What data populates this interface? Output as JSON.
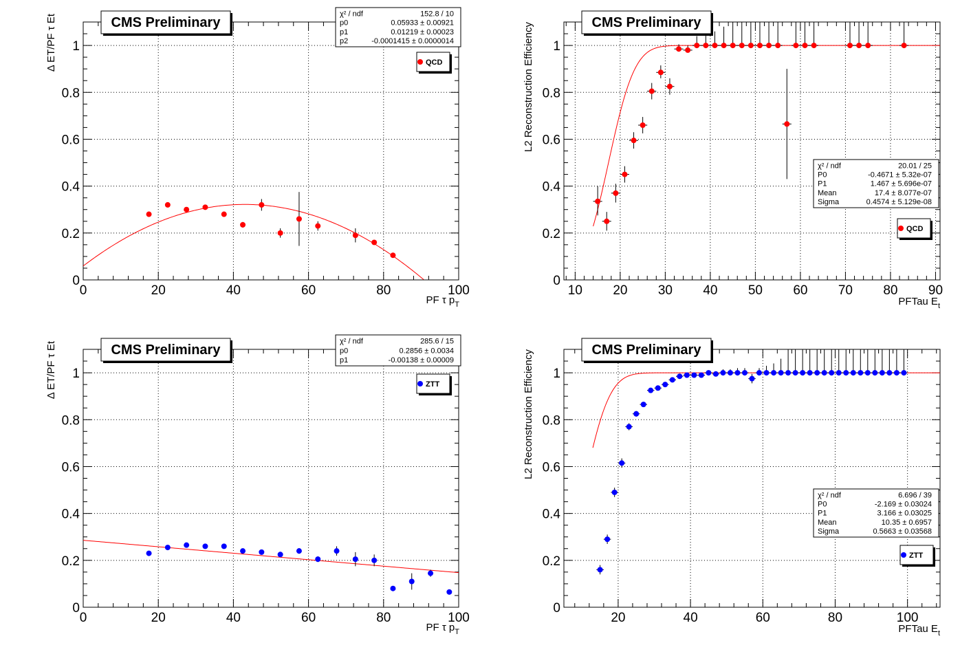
{
  "colors": {
    "red_marker": "#ff0000",
    "blue_marker": "#0000ff",
    "fit_line": "#ff0000",
    "frame": "#000000",
    "grid": "#000000"
  },
  "chart_data": [
    {
      "id": "qcd_resolution",
      "type": "scatter",
      "banner": "CMS Preliminary",
      "ylabel": "Δ ET/PF τ Et",
      "xlabel_main": "PF τ p",
      "xlabel_sub": "T",
      "xlim": [
        0,
        100
      ],
      "ylim": [
        0,
        1.1
      ],
      "xticks": [
        "0",
        "20",
        "40",
        "60",
        "80",
        "100"
      ],
      "yticks": [
        "0",
        "0.2",
        "0.4",
        "0.6",
        "0.8",
        "1"
      ],
      "legend": "QCD",
      "marker_color": "#ff0000",
      "grid": true,
      "fit": {
        "type": "poly",
        "coeffs": [
          0.05933,
          0.01219,
          -0.0001415
        ],
        "xrange": [
          0,
          100
        ]
      },
      "stats": [
        [
          "χ² / ndf",
          "152.8 / 10"
        ],
        [
          "p0",
          "0.05933 ± 0.00921"
        ],
        [
          "p1",
          "0.01219 ± 0.00023"
        ],
        [
          "p2",
          "-0.0001415 ± 0.0000014"
        ]
      ],
      "points": [
        [
          17.5,
          0.28,
          0.008
        ],
        [
          22.5,
          0.32,
          0.008
        ],
        [
          27.5,
          0.3,
          0.008
        ],
        [
          32.5,
          0.31,
          0.008
        ],
        [
          37.5,
          0.28,
          0.01
        ],
        [
          42.5,
          0.235,
          0.012
        ],
        [
          47.5,
          0.32,
          0.025
        ],
        [
          52.5,
          0.2,
          0.02
        ],
        [
          57.5,
          0.26,
          0.115
        ],
        [
          62.5,
          0.23,
          0.02
        ],
        [
          72.5,
          0.19,
          0.03
        ],
        [
          77.5,
          0.16,
          0.008
        ],
        [
          82.5,
          0.105,
          0.008
        ]
      ]
    },
    {
      "id": "qcd_efficiency",
      "type": "scatter",
      "banner": "CMS Preliminary",
      "ylabel": "L2 Reconstruction Efficiency",
      "xlabel_main": "PFTau E",
      "xlabel_sub": "t",
      "xlim": [
        7.5,
        91
      ],
      "ylim": [
        0,
        1.1
      ],
      "xticks": [
        "10",
        "20",
        "30",
        "40",
        "50",
        "60",
        "70",
        "80",
        "90"
      ],
      "yticks": [
        "0",
        "0.2",
        "0.4",
        "0.6",
        "0.8",
        "1"
      ],
      "legend": "QCD",
      "marker_color": "#ff0000",
      "grid": true,
      "fit": {
        "type": "erf",
        "mean": 17.4,
        "sigma": 4.574,
        "xrange": [
          14,
          91
        ]
      },
      "stats": [
        [
          "χ² / ndf",
          "20.01 / 25"
        ],
        [
          "P0",
          "-0.4671 ± 5.32e-07"
        ],
        [
          "P1",
          "1.467 ± 5.696e-07"
        ],
        [
          "Mean",
          "17.4 ± 8.077e-07"
        ],
        [
          "Sigma",
          "0.4574 ± 5.129e-08"
        ]
      ],
      "points": [
        [
          15,
          0.335,
          0.06,
          0.065
        ],
        [
          17,
          0.25,
          0.04,
          0.04
        ],
        [
          19,
          0.37,
          0.04,
          0.04
        ],
        [
          21,
          0.45,
          0.035,
          0.035
        ],
        [
          23,
          0.595,
          0.035,
          0.035
        ],
        [
          25,
          0.66,
          0.035,
          0.035
        ],
        [
          27,
          0.805,
          0.035,
          0.035
        ],
        [
          29,
          0.885,
          0.025,
          0.03
        ],
        [
          31,
          0.825,
          0.035,
          0.035
        ],
        [
          33,
          0.985,
          0.01,
          0.02
        ],
        [
          35,
          0.98,
          0.01,
          0.02
        ],
        [
          37,
          1.0,
          0,
          0.04
        ],
        [
          39,
          1.0,
          0,
          0.05
        ],
        [
          41,
          1.0,
          0,
          0.06
        ],
        [
          43,
          1.0,
          0,
          0.08
        ],
        [
          45,
          1.0,
          0,
          0.1
        ],
        [
          47,
          1.0,
          0,
          0.12
        ],
        [
          49,
          1.0,
          0,
          0.15
        ],
        [
          51,
          1.0,
          0,
          0.2
        ],
        [
          53,
          1.0,
          0,
          0.25
        ],
        [
          55,
          1.0,
          0,
          0.25
        ],
        [
          57,
          0.665,
          0.235,
          0.235
        ],
        [
          59,
          1.0,
          0,
          0.32
        ],
        [
          61,
          1.0,
          0,
          0.44
        ],
        [
          63,
          1.0,
          0,
          0.25
        ],
        [
          71,
          1.0,
          0,
          0.44
        ],
        [
          73,
          1.0,
          0,
          0.44
        ],
        [
          75,
          1.0,
          0,
          0.44
        ],
        [
          83,
          1.0,
          0,
          0.44
        ]
      ]
    },
    {
      "id": "ztt_resolution",
      "type": "scatter",
      "banner": "CMS Preliminary",
      "ylabel": "Δ ET/PF τ Et",
      "xlabel_main": "PF τ p",
      "xlabel_sub": "T",
      "xlim": [
        0,
        100
      ],
      "ylim": [
        0,
        1.1
      ],
      "xticks": [
        "0",
        "20",
        "40",
        "60",
        "80",
        "100"
      ],
      "yticks": [
        "0",
        "0.2",
        "0.4",
        "0.6",
        "0.8",
        "1"
      ],
      "legend": "ZTT",
      "marker_color": "#0000ff",
      "grid": true,
      "fit": {
        "type": "poly",
        "coeffs": [
          0.2856,
          -0.00138
        ],
        "xrange": [
          0,
          100
        ]
      },
      "stats": [
        [
          "χ² / ndf",
          "285.6 / 15"
        ],
        [
          "p0",
          "0.2856 ± 0.0034"
        ],
        [
          "p1",
          "-0.00138 ± 0.00009"
        ]
      ],
      "points": [
        [
          17.5,
          0.23,
          0.005
        ],
        [
          22.5,
          0.255,
          0.005
        ],
        [
          27.5,
          0.265,
          0.005
        ],
        [
          32.5,
          0.26,
          0.005
        ],
        [
          37.5,
          0.26,
          0.005
        ],
        [
          42.5,
          0.24,
          0.008
        ],
        [
          47.5,
          0.235,
          0.008
        ],
        [
          52.5,
          0.225,
          0.01
        ],
        [
          57.5,
          0.24,
          0.012
        ],
        [
          62.5,
          0.205,
          0.012
        ],
        [
          67.5,
          0.24,
          0.02
        ],
        [
          72.5,
          0.205,
          0.03
        ],
        [
          77.5,
          0.2,
          0.025
        ],
        [
          82.5,
          0.08,
          0.01
        ],
        [
          87.5,
          0.11,
          0.035
        ],
        [
          92.5,
          0.145,
          0.015
        ],
        [
          97.5,
          0.065,
          0.005
        ]
      ]
    },
    {
      "id": "ztt_efficiency",
      "type": "scatter",
      "banner": "CMS Preliminary",
      "ylabel": "L2 Reconstruction Efficiency",
      "xlabel_main": "PFTau E",
      "xlabel_sub": "t",
      "xlim": [
        5,
        109
      ],
      "ylim": [
        0,
        1.1
      ],
      "xticks": [
        "20",
        "40",
        "60",
        "80",
        "100"
      ],
      "yticks": [
        "0",
        "0.2",
        "0.4",
        "0.6",
        "0.8",
        "1"
      ],
      "legend": "ZTT",
      "marker_color": "#0000ff",
      "grid": true,
      "fit": {
        "type": "erf",
        "mean": 10.35,
        "sigma": 5.663,
        "xrange": [
          13,
          109
        ]
      },
      "stats": [
        [
          "χ² / ndf",
          "6.696 / 39"
        ],
        [
          "P0",
          "-2.169 ± 0.03024"
        ],
        [
          "P1",
          "3.166 ± 0.03025"
        ],
        [
          "Mean",
          "10.35 ± 0.6957"
        ],
        [
          "Sigma",
          "0.5663 ± 0.03568"
        ]
      ],
      "points": [
        [
          15,
          0.16,
          0.02,
          0.02
        ],
        [
          17,
          0.29,
          0.02,
          0.02
        ],
        [
          19,
          0.49,
          0.02,
          0.02
        ],
        [
          21,
          0.615,
          0.02,
          0.02
        ],
        [
          23,
          0.77,
          0.015,
          0.015
        ],
        [
          25,
          0.825,
          0.012,
          0.012
        ],
        [
          27,
          0.865,
          0.01,
          0.01
        ],
        [
          29,
          0.925,
          0.008,
          0.008
        ],
        [
          31,
          0.935,
          0.008,
          0.008
        ],
        [
          33,
          0.95,
          0.006,
          0.006
        ],
        [
          35,
          0.97,
          0.005,
          0.005
        ],
        [
          37,
          0.985,
          0.004,
          0.004
        ],
        [
          39,
          0.99,
          0.004,
          0.004
        ],
        [
          41,
          0.99,
          0.004,
          0.004
        ],
        [
          43,
          0.99,
          0.004,
          0.004
        ],
        [
          45,
          1.0,
          0,
          0.01
        ],
        [
          47,
          0.995,
          0,
          0.01
        ],
        [
          49,
          1.0,
          0,
          0.015
        ],
        [
          51,
          1.0,
          0,
          0.015
        ],
        [
          53,
          1.0,
          0,
          0.02
        ],
        [
          55,
          1.0,
          0,
          0.02
        ],
        [
          57,
          0.975,
          0.02,
          0.02
        ],
        [
          59,
          1.0,
          0,
          0.02
        ],
        [
          61,
          1.0,
          0,
          0.03
        ],
        [
          63,
          1.0,
          0,
          0.04
        ],
        [
          65,
          1.0,
          0,
          0.06
        ],
        [
          67,
          1.0,
          0,
          0.1
        ],
        [
          69,
          1.0,
          0,
          0.1
        ],
        [
          71,
          1.0,
          0,
          0.12
        ],
        [
          73,
          1.0,
          0,
          0.15
        ],
        [
          75,
          1.0,
          0,
          0.2
        ],
        [
          77,
          1.0,
          0,
          0.13
        ],
        [
          79,
          1.0,
          0,
          0.2
        ],
        [
          81,
          1.0,
          0,
          0.2
        ],
        [
          83,
          1.0,
          0,
          0.3
        ],
        [
          85,
          1.0,
          0,
          0.35
        ],
        [
          87,
          1.0,
          0,
          0.3
        ],
        [
          89,
          1.0,
          0,
          0.44
        ],
        [
          91,
          1.0,
          0,
          0.3
        ],
        [
          93,
          1.0,
          0,
          0.3
        ],
        [
          95,
          1.0,
          0,
          0.3
        ],
        [
          97,
          1.0,
          0,
          0.44
        ],
        [
          99,
          1.0,
          0,
          0.44
        ]
      ]
    }
  ]
}
